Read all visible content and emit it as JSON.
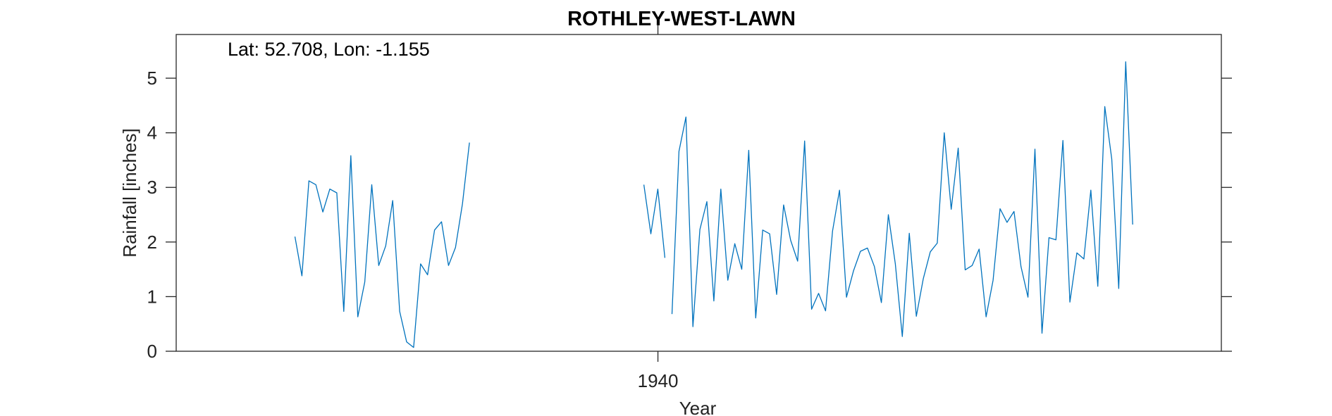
{
  "chart_data": {
    "type": "line",
    "title": "ROTHLEY-WEST-LAWN",
    "xlabel": "Year",
    "ylabel": "Rainfall [inches]",
    "annotation": "Lat: 52.708, Lon: -1.155",
    "xlim": [
      1917.0,
      1966.9
    ],
    "ylim": [
      0,
      5.8
    ],
    "x_ticks": [
      1940
    ],
    "x_tick_labels": [
      "1940"
    ],
    "y_ticks": [
      0,
      1,
      2,
      3,
      4,
      5
    ],
    "y_tick_labels": [
      "0",
      "1",
      "2",
      "3",
      "4",
      "5"
    ],
    "grid": false,
    "series": [
      {
        "color": "#0072bd",
        "segments": [
          {
            "start": 1922.67,
            "step": 0.3333,
            "values": [
              2.1,
              1.38,
              3.12,
              3.05,
              2.55,
              2.97,
              2.9,
              0.73,
              3.58,
              0.63,
              1.27,
              3.05,
              1.57,
              1.93,
              2.76,
              0.73,
              0.17,
              0.07,
              1.6,
              1.4,
              2.22,
              2.37,
              1.57,
              1.9,
              2.7,
              3.82
            ]
          },
          {
            "start": 1939.33,
            "step": 0.3333,
            "values": [
              3.05,
              2.15,
              2.97,
              1.71
            ]
          },
          {
            "start": 1940.67,
            "step": 0.3333,
            "values": [
              0.68,
              3.66,
              4.29,
              0.45,
              2.23,
              2.74,
              0.92,
              2.97,
              1.3,
              1.97,
              1.5,
              3.68,
              0.61,
              2.22,
              2.15,
              1.04,
              2.68,
              2.03,
              1.65,
              3.85,
              0.77,
              1.06,
              0.74,
              2.2,
              2.95,
              0.99,
              1.47,
              1.83,
              1.89,
              1.55,
              0.89,
              2.5,
              1.6,
              0.27,
              2.16,
              0.64,
              1.33,
              1.82,
              1.98,
              4.0,
              2.6,
              3.72,
              1.49,
              1.57,
              1.87,
              0.63,
              1.3,
              2.61,
              2.36,
              2.56,
              1.55,
              0.99,
              3.7,
              0.33,
              2.08,
              2.04,
              3.86,
              0.9,
              1.8,
              1.69,
              2.95,
              1.19,
              4.48,
              3.52,
              1.15,
              5.3,
              2.32
            ]
          }
        ]
      }
    ]
  }
}
